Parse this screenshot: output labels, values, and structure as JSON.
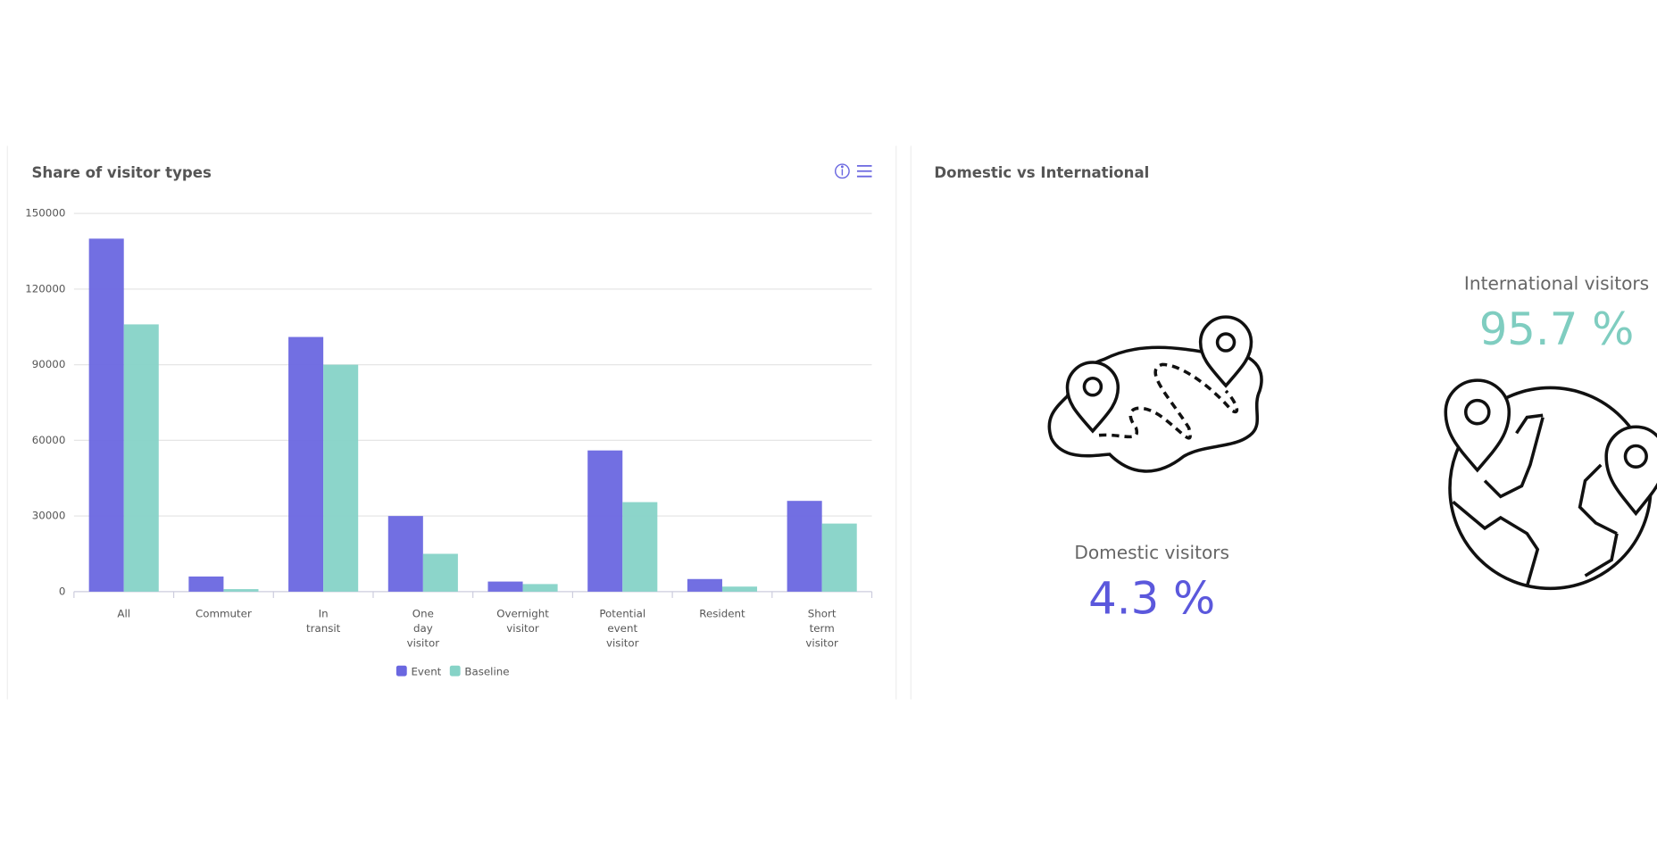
{
  "chart_data": {
    "type": "bar",
    "title": "Share of visitor types",
    "categories": [
      "All",
      "Commuter",
      "In transit",
      "One day visitor",
      "Overnight visitor",
      "Potential event visitor",
      "Resident",
      "Short term visitor"
    ],
    "series": [
      {
        "name": "Event",
        "color": "#6a67e0",
        "values": [
          140000,
          6000,
          101000,
          30000,
          4000,
          56000,
          5000,
          36000
        ]
      },
      {
        "name": "Baseline",
        "color": "#86d3c7",
        "values": [
          106000,
          1000,
          90000,
          15000,
          3000,
          35500,
          2000,
          27000
        ]
      }
    ],
    "ylim": [
      0,
      150000
    ],
    "yticks": [
      0,
      30000,
      60000,
      90000,
      120000,
      150000
    ],
    "grid": true,
    "legend": "bottom"
  },
  "stats": {
    "title": "Domestic vs International",
    "domestic": {
      "label": "Domestic visitors",
      "value": "4.3 %"
    },
    "international": {
      "label": "International visitors",
      "value": "95.7 %"
    }
  }
}
